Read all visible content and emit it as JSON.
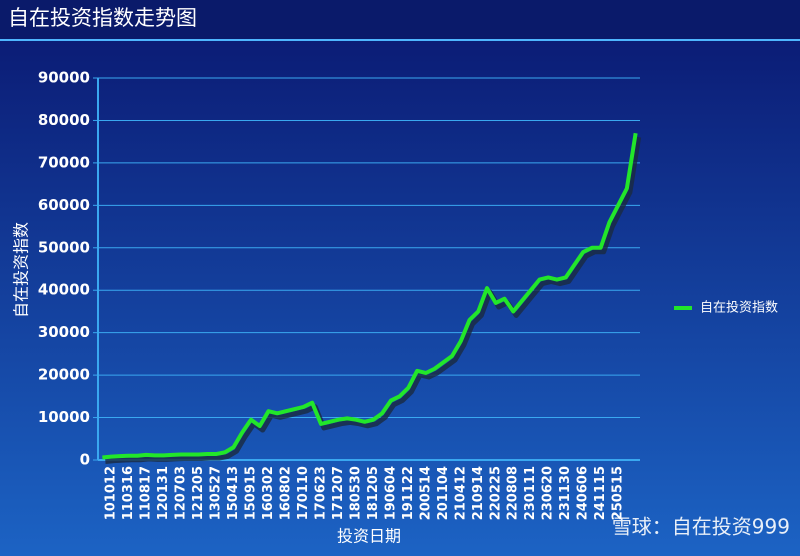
{
  "chart_data": {
    "type": "line",
    "title": "自在投资指数走势图",
    "xlabel": "投资日期",
    "ylabel": "自在投资指数",
    "watermark": "雪球：自在投资999",
    "categories": [
      null,
      "101012",
      null,
      "110316",
      null,
      "110817",
      null,
      "120131",
      null,
      "120703",
      null,
      "121205",
      null,
      "130527",
      null,
      "150413",
      null,
      "150915",
      null,
      "160302",
      null,
      "160802",
      null,
      "170110",
      null,
      "170623",
      null,
      "171207",
      null,
      "180530",
      null,
      "181205",
      null,
      "190604",
      null,
      "191122",
      null,
      "200514",
      null,
      "201104",
      null,
      "210412",
      null,
      "210914",
      null,
      "220225",
      null,
      "220808",
      null,
      "230111",
      null,
      "230620",
      null,
      "231130",
      null,
      "240606",
      null,
      "241115",
      null,
      "250515",
      null,
      null
    ],
    "series": [
      {
        "name": "自在投资指数",
        "color": "#22e62a",
        "values": [
          600,
          800,
          900,
          1000,
          1000,
          1200,
          1100,
          1100,
          1200,
          1300,
          1300,
          1300,
          1400,
          1400,
          1800,
          3000,
          6500,
          9500,
          8000,
          11500,
          11000,
          11500,
          12000,
          12500,
          13500,
          8500,
          9000,
          9500,
          9800,
          9500,
          9000,
          9500,
          11000,
          14000,
          15000,
          17000,
          21000,
          20500,
          21500,
          23000,
          24500,
          28000,
          33000,
          35000,
          40500,
          37000,
          38000,
          35000,
          37500,
          40000,
          42500,
          43000,
          42500,
          43000,
          46000,
          49000,
          50000,
          50000,
          56000,
          60000,
          64000,
          77000
        ]
      }
    ],
    "ylim": [
      0,
      90000
    ],
    "yticks": [
      0,
      10000,
      20000,
      30000,
      40000,
      50000,
      60000,
      70000,
      80000,
      90000
    ],
    "grid": true,
    "legend": "right"
  }
}
